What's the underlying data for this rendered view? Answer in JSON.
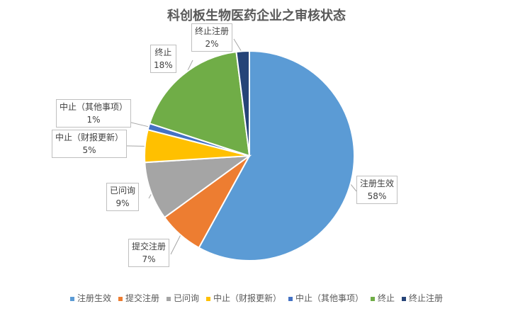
{
  "chart_data": {
    "type": "pie",
    "title": "科创板生物医药企业之审核状态",
    "categories": [
      "注册生效",
      "提交注册",
      "已问询",
      "中止（财报更新）",
      "中止（其他事项）",
      "终止",
      "终止注册"
    ],
    "values": [
      58,
      7,
      9,
      5,
      1,
      18,
      2
    ],
    "value_labels": [
      "58%",
      "7%",
      "9%",
      "5%",
      "1%",
      "18%",
      "2%"
    ],
    "colors": [
      "#5B9BD5",
      "#ED7D31",
      "#A5A5A5",
      "#FFC000",
      "#4472C4",
      "#70AD47",
      "#264478"
    ],
    "start_angle": "12 o'clock",
    "direction": "clockwise",
    "legend": "bottom"
  }
}
